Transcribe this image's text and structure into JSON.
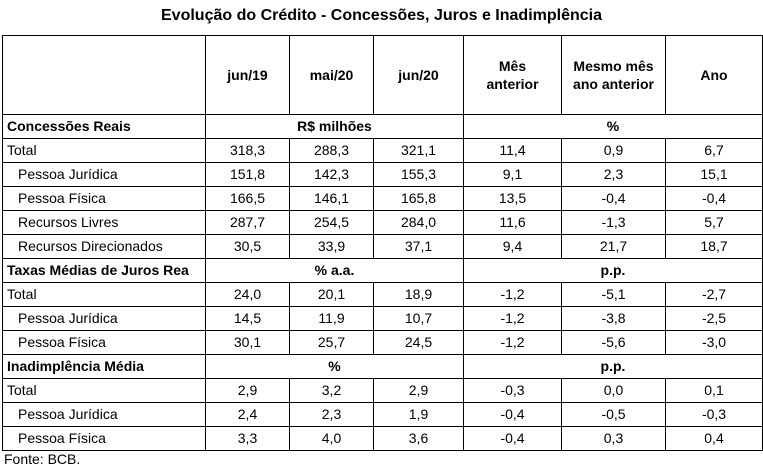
{
  "title": "Evolução do Crédito - Concessões, Juros e Inadimplência",
  "header": {
    "blank": "",
    "cols": [
      "jun/19",
      "mai/20",
      "jun/20",
      "Mês anterior",
      "Mesmo mês ano anterior",
      "Ano"
    ]
  },
  "sections": [
    {
      "label": "Concessões Reais",
      "unit_left": "R$ milhões",
      "unit_right": "%",
      "rows": [
        {
          "label": "Total",
          "values": [
            "318,3",
            "288,3",
            "321,1",
            "11,4",
            "0,9",
            "6,7"
          ]
        },
        {
          "label": "Pessoa Jurídica",
          "values": [
            "151,8",
            "142,3",
            "155,3",
            "9,1",
            "2,3",
            "15,1"
          ]
        },
        {
          "label": "Pessoa Física",
          "values": [
            "166,5",
            "146,1",
            "165,8",
            "13,5",
            "-0,4",
            "-0,4"
          ]
        },
        {
          "label": "Recursos Livres",
          "values": [
            "287,7",
            "254,5",
            "284,0",
            "11,6",
            "-1,3",
            "5,7"
          ]
        },
        {
          "label": "Recursos Direcionados",
          "values": [
            "30,5",
            "33,9",
            "37,1",
            "9,4",
            "21,7",
            "18,7"
          ]
        }
      ]
    },
    {
      "label": "Taxas Médias de Juros Rea",
      "unit_left": "% a.a.",
      "unit_right": "p.p.",
      "rows": [
        {
          "label": "Total",
          "values": [
            "24,0",
            "20,1",
            "18,9",
            "-1,2",
            "-5,1",
            "-2,7"
          ]
        },
        {
          "label": "Pessoa Jurídica",
          "values": [
            "14,5",
            "11,9",
            "10,7",
            "-1,2",
            "-3,8",
            "-2,5"
          ]
        },
        {
          "label": "Pessoa Física",
          "values": [
            "30,1",
            "25,7",
            "24,5",
            "-1,2",
            "-5,6",
            "-3,0"
          ]
        }
      ]
    },
    {
      "label": "Inadimplência Média",
      "unit_left": "%",
      "unit_right": "p.p.",
      "rows": [
        {
          "label": "Total",
          "values": [
            "2,9",
            "3,2",
            "2,9",
            "-0,3",
            "0,0",
            "0,1"
          ]
        },
        {
          "label": "Pessoa Jurídica",
          "values": [
            "2,4",
            "2,3",
            "1,9",
            "-0,4",
            "-0,5",
            "-0,3"
          ]
        },
        {
          "label": "Pessoa Física",
          "values": [
            "3,3",
            "4,0",
            "3,6",
            "-0,4",
            "0,3",
            "0,4"
          ]
        }
      ]
    }
  ],
  "source": "Fonte: BCB."
}
